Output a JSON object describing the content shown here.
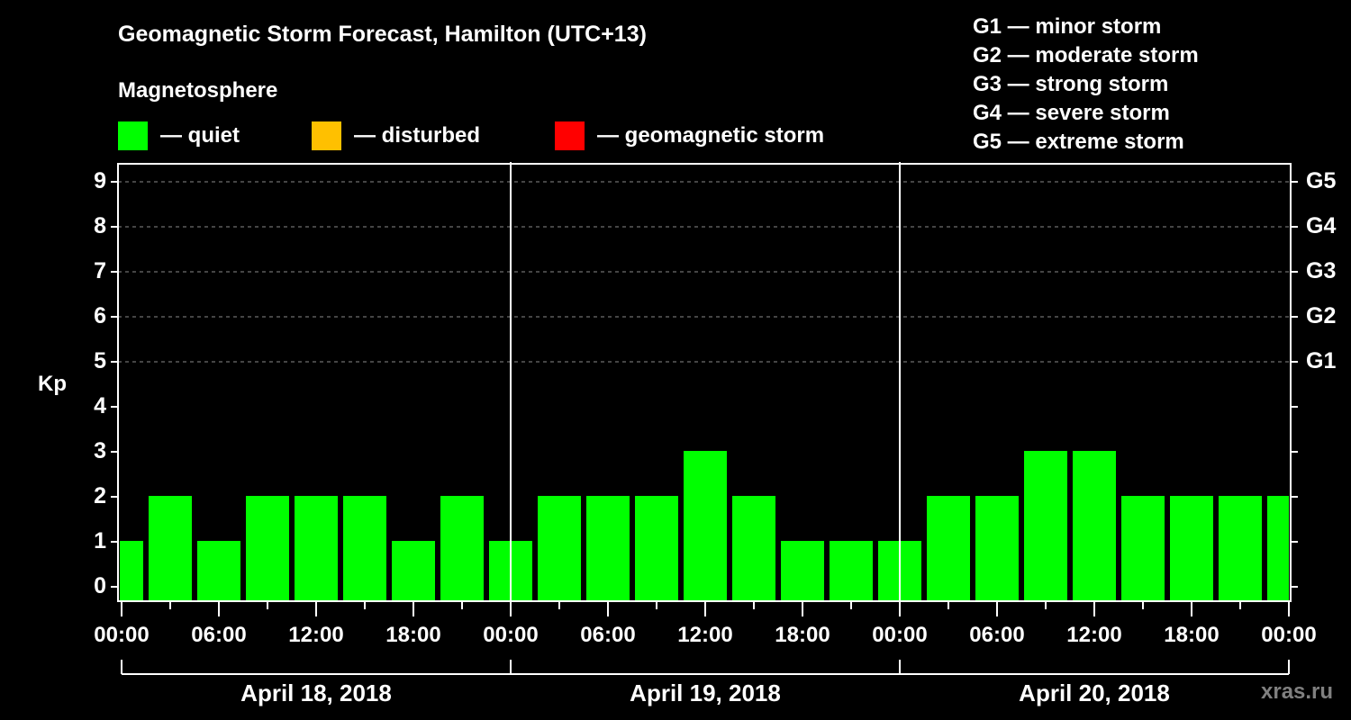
{
  "header": {
    "title": "Geomagnetic Storm Forecast, Hamilton (UTC+13)",
    "subtitle": "Magnetosphere"
  },
  "legend": [
    {
      "label": "— quiet",
      "color": "#00ff00"
    },
    {
      "label": "— disturbed",
      "color": "#ffc000"
    },
    {
      "label": "— geomagnetic storm",
      "color": "#ff0000"
    }
  ],
  "g_scale": [
    "G1 — minor storm",
    "G2 — moderate storm",
    "G3 — strong storm",
    "G4 — severe storm",
    "G5 — extreme storm"
  ],
  "watermark": "xras.ru",
  "chart_data": {
    "type": "bar",
    "title": "Geomagnetic Storm Forecast, Hamilton (UTC+13)",
    "subtitle": "Magnetosphere",
    "ylabel": "Kp",
    "xlabel": "",
    "ylim": [
      0,
      9
    ],
    "y_ticks": [
      0,
      1,
      2,
      3,
      4,
      5,
      6,
      7,
      8,
      9
    ],
    "y2_ticks": [
      {
        "kp": 5,
        "label": "G1"
      },
      {
        "kp": 6,
        "label": "G2"
      },
      {
        "kp": 7,
        "label": "G3"
      },
      {
        "kp": 8,
        "label": "G4"
      },
      {
        "kp": 9,
        "label": "G5"
      }
    ],
    "grid": {
      "horizontal_dashed_at": [
        5,
        6,
        7,
        8,
        9
      ]
    },
    "x_tick_labels": [
      "00:00",
      "06:00",
      "12:00",
      "18:00",
      "00:00",
      "06:00",
      "12:00",
      "18:00",
      "00:00",
      "06:00",
      "12:00",
      "18:00",
      "00:00"
    ],
    "dates": [
      "April 18, 2018",
      "April 19, 2018",
      "April 20, 2018"
    ],
    "categories": [
      "Apr 18 00:00",
      "Apr 18 03:00",
      "Apr 18 06:00",
      "Apr 18 09:00",
      "Apr 18 12:00",
      "Apr 18 15:00",
      "Apr 18 18:00",
      "Apr 18 21:00",
      "Apr 19 00:00",
      "Apr 19 03:00",
      "Apr 19 06:00",
      "Apr 19 09:00",
      "Apr 19 12:00",
      "Apr 19 15:00",
      "Apr 19 18:00",
      "Apr 19 21:00",
      "Apr 20 00:00",
      "Apr 20 03:00",
      "Apr 20 06:00",
      "Apr 20 09:00",
      "Apr 20 12:00",
      "Apr 20 15:00",
      "Apr 20 18:00",
      "Apr 20 21:00",
      "Apr 21 00:00"
    ],
    "values": [
      1,
      2,
      1,
      2,
      2,
      2,
      1,
      2,
      1,
      2,
      2,
      2,
      3,
      2,
      1,
      1,
      1,
      2,
      2,
      3,
      3,
      2,
      2,
      2,
      2
    ],
    "bar_color_quiet": "#00ff00",
    "legend": [
      "quiet",
      "disturbed",
      "geomagnetic storm"
    ]
  }
}
